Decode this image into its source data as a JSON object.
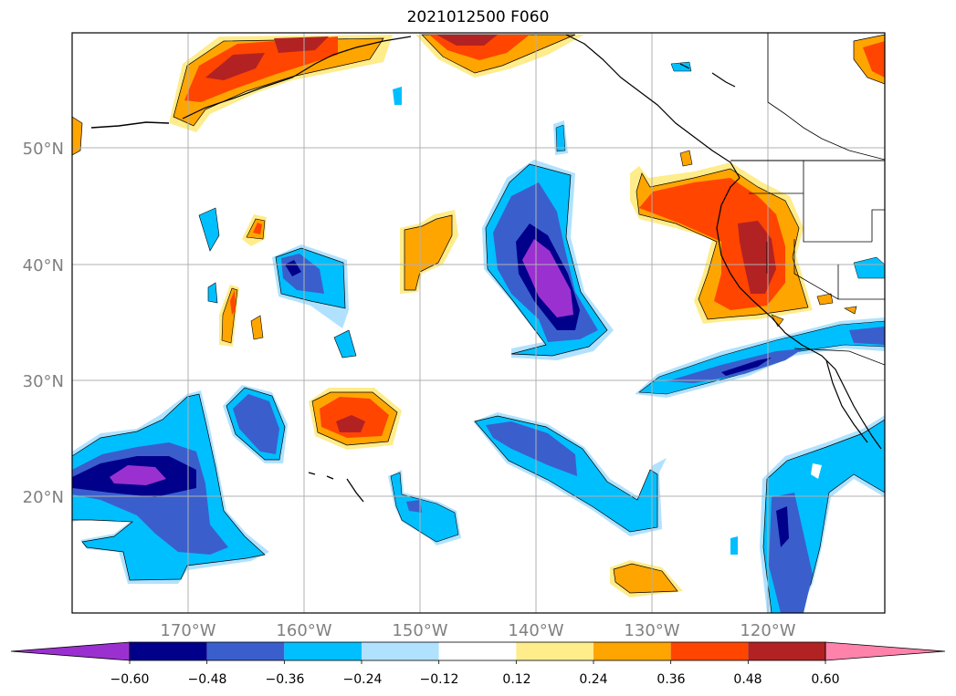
{
  "title": "2021012500 F060",
  "map": {
    "lon_range": [
      -180,
      -110
    ],
    "lat_range": [
      10,
      60
    ],
    "lat_labels": [
      "50°N",
      "40°N",
      "30°N",
      "20°N"
    ],
    "lon_labels": [
      "170°W",
      "160°W",
      "150°W",
      "140°W",
      "130°W",
      "120°W"
    ],
    "gridlines": true
  },
  "colorbar": {
    "levels": [
      -0.6,
      -0.48,
      -0.36,
      -0.24,
      -0.12,
      0.12,
      0.24,
      0.36,
      0.48,
      0.6
    ],
    "tick_labels": [
      "−0.60",
      "−0.48",
      "−0.36",
      "−0.24",
      "−0.12",
      "0.12",
      "0.24",
      "0.36",
      "0.48",
      "0.60"
    ],
    "colors": [
      "#9b30d0",
      "#00008b",
      "#3a5fcd",
      "#00bfff",
      "#b0e2ff",
      "#ffffff",
      "#ffec8b",
      "#ffa500",
      "#ff4500",
      "#b22222",
      "#ff82ab"
    ],
    "extend": "both"
  }
}
